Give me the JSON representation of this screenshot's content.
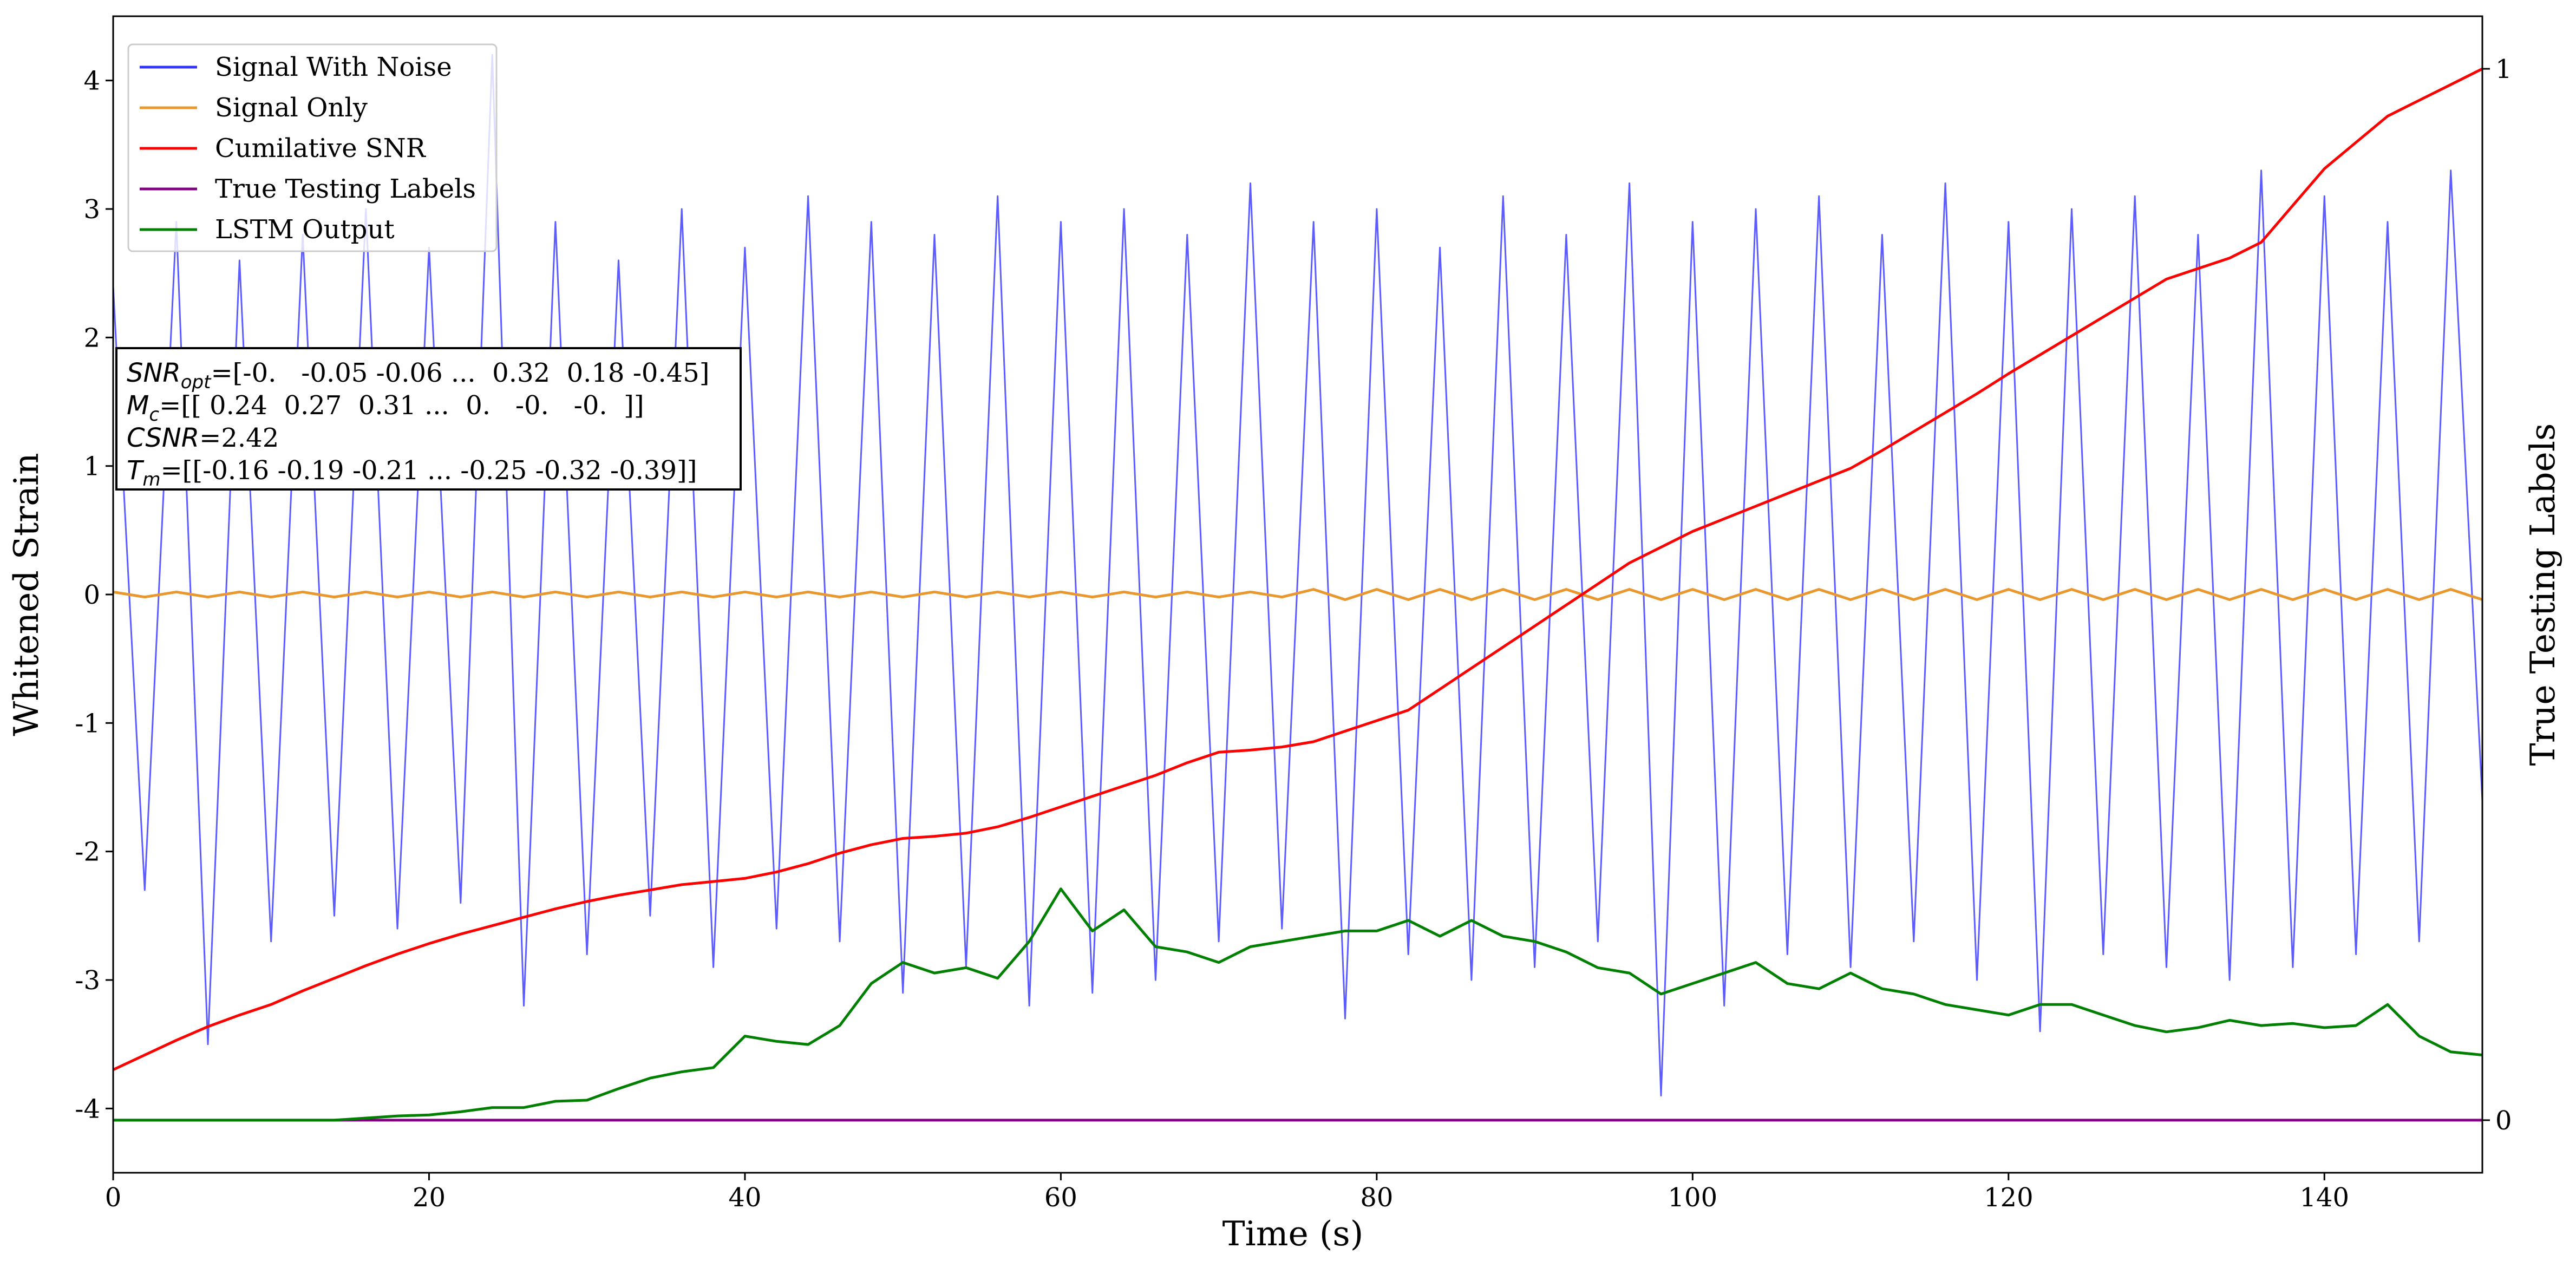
{
  "chart_data": {
    "type": "line",
    "xlabel": "Time (s)",
    "ylabel": "Whitened Strain",
    "y2label": "True Testing Labels",
    "xlim": [
      0,
      150
    ],
    "xticks": [
      0,
      20,
      40,
      60,
      80,
      100,
      120,
      140
    ],
    "ylim": [
      -4.5,
      4.5
    ],
    "yticks": [
      -4,
      -3,
      -2,
      -1,
      0,
      1,
      2,
      3,
      4
    ],
    "y2lim": [
      -0.05,
      1.05
    ],
    "y2ticks": [
      0,
      1
    ],
    "legend": "upper left",
    "x": [
      0,
      2,
      4,
      6,
      8,
      10,
      12,
      14,
      16,
      18,
      20,
      22,
      24,
      26,
      28,
      30,
      32,
      34,
      36,
      38,
      40,
      42,
      44,
      46,
      48,
      50,
      52,
      54,
      56,
      58,
      60,
      62,
      64,
      66,
      68,
      70,
      72,
      74,
      76,
      78,
      80,
      82,
      84,
      86,
      88,
      90,
      92,
      94,
      96,
      98,
      100,
      102,
      104,
      106,
      108,
      110,
      112,
      114,
      116,
      118,
      120,
      122,
      124,
      126,
      128,
      130,
      132,
      134,
      136,
      138,
      140,
      142,
      144,
      146,
      148,
      150
    ],
    "series": [
      {
        "name": "Signal With Noise",
        "color": "#3333ff",
        "values": [
          2.4,
          -2.3,
          2.9,
          -3.5,
          2.6,
          -2.7,
          2.8,
          -2.5,
          3.0,
          -2.6,
          2.7,
          -2.4,
          4.2,
          -3.2,
          2.9,
          -2.8,
          2.6,
          -2.5,
          3.0,
          -2.9,
          2.7,
          -2.6,
          3.1,
          -2.7,
          2.9,
          -3.1,
          2.8,
          -2.9,
          3.1,
          -3.2,
          2.9,
          -3.1,
          3.0,
          -3.0,
          2.8,
          -2.7,
          3.2,
          -2.6,
          2.9,
          -3.3,
          3.0,
          -2.8,
          2.7,
          -3.0,
          3.1,
          -2.9,
          2.8,
          -2.7,
          3.2,
          -3.9,
          2.9,
          -3.2,
          3.0,
          -2.8,
          3.1,
          -2.9,
          2.8,
          -2.7,
          3.2,
          -3.0,
          2.9,
          -3.4,
          3.0,
          -2.8,
          3.1,
          -2.9,
          2.8,
          -3.0,
          3.3,
          -2.9,
          3.1,
          -2.8,
          2.9,
          -2.7,
          3.3,
          -1.6
        ]
      },
      {
        "name": "Signal Only",
        "color": "#e8982e",
        "values": [
          0.02,
          -0.02,
          0.02,
          -0.02,
          0.02,
          -0.02,
          0.02,
          -0.02,
          0.02,
          -0.02,
          0.02,
          -0.02,
          0.02,
          -0.02,
          0.02,
          -0.02,
          0.02,
          -0.02,
          0.02,
          -0.02,
          0.02,
          -0.02,
          0.02,
          -0.02,
          0.02,
          -0.02,
          0.02,
          -0.02,
          0.02,
          -0.02,
          0.02,
          -0.02,
          0.02,
          -0.02,
          0.02,
          -0.02,
          0.02,
          -0.02,
          0.04,
          -0.04,
          0.04,
          -0.04,
          0.04,
          -0.04,
          0.04,
          -0.04,
          0.04,
          -0.04,
          0.04,
          -0.04,
          0.04,
          -0.04,
          0.04,
          -0.04,
          0.04,
          -0.04,
          0.04,
          -0.04,
          0.04,
          -0.04,
          0.04,
          -0.04,
          0.04,
          -0.04,
          0.04,
          -0.04,
          0.04,
          -0.04,
          0.04,
          -0.04,
          0.04,
          -0.04,
          0.04,
          -0.04,
          0.04,
          -0.04
        ]
      },
      {
        "name": "Cumilative SNR",
        "color": "#ff0000",
        "axis": "y2",
        "values": [
          0.048,
          0.062,
          0.076,
          0.089,
          0.1,
          0.11,
          0.123,
          0.135,
          0.147,
          0.158,
          0.168,
          0.177,
          0.185,
          0.193,
          0.201,
          0.208,
          0.214,
          0.219,
          0.224,
          0.227,
          0.23,
          0.236,
          0.244,
          0.254,
          0.262,
          0.268,
          0.27,
          0.273,
          0.279,
          0.288,
          0.298,
          0.308,
          0.318,
          0.328,
          0.34,
          0.35,
          0.352,
          0.355,
          0.36,
          0.37,
          0.38,
          0.39,
          0.41,
          0.43,
          0.45,
          0.47,
          0.49,
          0.51,
          0.53,
          0.545,
          0.56,
          0.572,
          0.584,
          0.596,
          0.608,
          0.62,
          0.637,
          0.655,
          0.673,
          0.691,
          0.71,
          0.728,
          0.746,
          0.764,
          0.782,
          0.8,
          0.81,
          0.82,
          0.835,
          0.87,
          0.905,
          0.93,
          0.955,
          0.97,
          0.985,
          1.0
        ]
      },
      {
        "name": "True Testing Labels",
        "color": "#800080",
        "axis": "y2",
        "values": [
          0,
          0,
          0,
          0,
          0,
          0,
          0,
          0,
          0,
          0,
          0,
          0,
          0,
          0,
          0,
          0,
          0,
          0,
          0,
          0,
          0,
          0,
          0,
          0,
          0,
          0,
          0,
          0,
          0,
          0,
          0,
          0,
          0,
          0,
          0,
          0,
          0,
          0,
          0,
          0,
          0,
          0,
          0,
          0,
          0,
          0,
          0,
          0,
          0,
          0,
          0,
          0,
          0,
          0,
          0,
          0,
          0,
          0,
          0,
          0,
          0,
          0,
          0,
          0,
          0,
          0,
          0,
          0,
          0,
          0,
          0,
          0,
          0,
          0,
          0,
          0
        ]
      },
      {
        "name": "LSTM Output",
        "color": "#008000",
        "axis": "y2",
        "values": [
          0,
          0,
          0,
          0,
          0,
          0,
          0,
          0,
          0.002,
          0.004,
          0.005,
          0.008,
          0.012,
          0.012,
          0.018,
          0.019,
          0.03,
          0.04,
          0.046,
          0.05,
          0.08,
          0.075,
          0.072,
          0.09,
          0.13,
          0.15,
          0.14,
          0.145,
          0.135,
          0.17,
          0.22,
          0.18,
          0.2,
          0.165,
          0.16,
          0.15,
          0.165,
          0.17,
          0.175,
          0.18,
          0.18,
          0.19,
          0.175,
          0.19,
          0.175,
          0.17,
          0.16,
          0.145,
          0.14,
          0.12,
          0.13,
          0.14,
          0.15,
          0.13,
          0.125,
          0.14,
          0.125,
          0.12,
          0.11,
          0.105,
          0.1,
          0.11,
          0.11,
          0.1,
          0.09,
          0.084,
          0.088,
          0.095,
          0.09,
          0.092,
          0.088,
          0.09,
          0.11,
          0.08,
          0.065,
          0.062
        ]
      }
    ],
    "annotations": [
      {
        "name": "SNR",
        "sub": "opt",
        "text": "=[-0.   -0.05 -0.06 ...  0.32  0.18 -0.45]"
      },
      {
        "name": "M",
        "sub": "c",
        "text": "=[[ 0.24  0.27  0.31 ...  0.   -0.   -0.  ]]"
      },
      {
        "name": "CSNR",
        "text": "=2.42"
      },
      {
        "name": "T",
        "sub": "m",
        "text": "=[[-0.16 -0.19 -0.21 ... -0.25 -0.32 -0.39]]"
      }
    ]
  }
}
